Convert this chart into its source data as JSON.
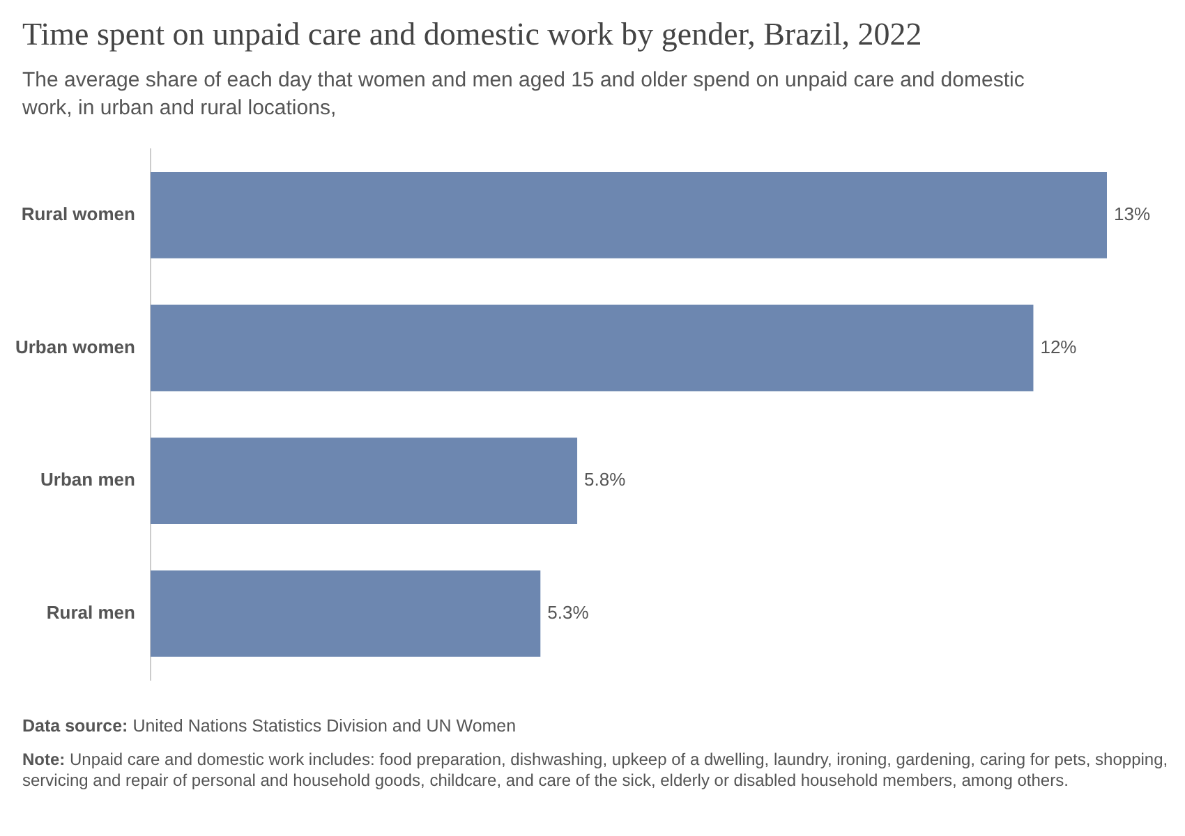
{
  "chart_data": {
    "type": "bar",
    "orientation": "horizontal",
    "title": "Time spent on unpaid care and domestic work by gender, Brazil, 2022",
    "subtitle": "The average share of each day that women and men aged 15 and older spend on unpaid care and domestic work, in urban and rural locations,",
    "categories": [
      "Rural women",
      "Urban women",
      "Urban men",
      "Rural men"
    ],
    "values": [
      13,
      12,
      5.8,
      5.3
    ],
    "value_labels": [
      "13%",
      "12%",
      "5.8%",
      "5.3%"
    ],
    "color": "#6d87b0",
    "legend": false,
    "tick_labels": "y",
    "annotations": [
      "Data source: United Nations Statistics Division and UN Women",
      "Note: Unpaid care and domestic work includes: food preparation, dishwashing, upkeep of a dwelling, laundry, ironing, gardening, caring for pets, shopping, servicing and repair of personal and household goods, childcare, and care of the sick, elderly or disabled household members, among others."
    ]
  }
}
